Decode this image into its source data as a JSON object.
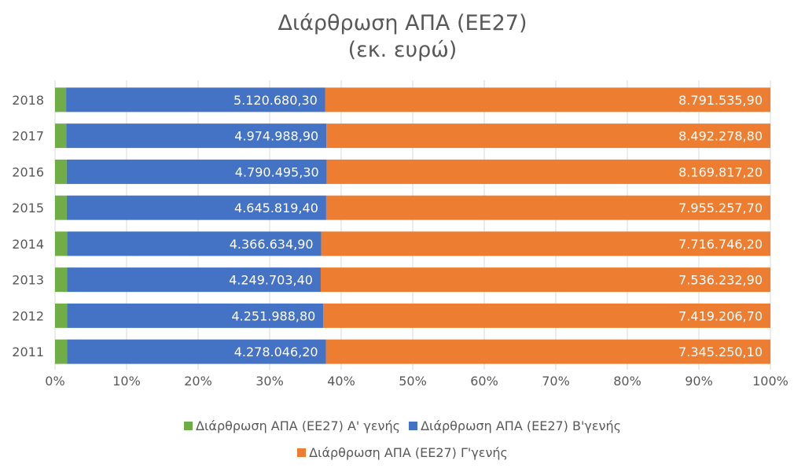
{
  "chart_data": {
    "type": "bar",
    "orientation": "horizontal",
    "stacking": "percent",
    "title": "Διάρθρωση ΑΠΑ (ΕΕ27)",
    "subtitle": "(εκ. ευρώ)",
    "categories": [
      "2018",
      "2017",
      "2016",
      "2015",
      "2014",
      "2013",
      "2012",
      "2011"
    ],
    "series": [
      {
        "name": "Διάρθρωση ΑΠΑ (ΕΕ27) Α' γενής",
        "color": "#70AD47",
        "values": [
          219000,
          215000,
          214000,
          210000,
          206000,
          203000,
          201000,
          198000
        ],
        "labels_shown": false
      },
      {
        "name": "Διάρθρωση ΑΠΑ (ΕΕ27) Β'γενής",
        "color": "#4472C4",
        "values": [
          5120680.3,
          4974988.9,
          4790495.3,
          4645819.4,
          4366634.9,
          4249703.4,
          4251988.8,
          4278046.2
        ],
        "labels": [
          "5.120.680,30",
          "4.974.988,90",
          "4.790.495,30",
          "4.645.819,40",
          "4.366.634,90",
          "4.249.703,40",
          "4.251.988,80",
          "4.278.046,20"
        ],
        "labels_shown": true
      },
      {
        "name": "Διάρθρωση ΑΠΑ (ΕΕ27) Γ'γενής",
        "color": "#ED7D31",
        "values": [
          8791535.9,
          8492278.8,
          8169817.2,
          7955257.7,
          7716746.2,
          7536232.9,
          7419206.7,
          7345250.1
        ],
        "labels": [
          "8.791.535,90",
          "8.492.278,80",
          "8.169.817,20",
          "7.955.257,70",
          "7.716.746,20",
          "7.536.232,90",
          "7.419.206,70",
          "7.345.250,10"
        ],
        "labels_shown": true
      }
    ],
    "x_ticks": [
      "0%",
      "10%",
      "20%",
      "30%",
      "40%",
      "50%",
      "60%",
      "70%",
      "80%",
      "90%",
      "100%"
    ],
    "xlim": [
      0,
      100
    ],
    "grid": "vertical",
    "legend_position": "bottom"
  }
}
